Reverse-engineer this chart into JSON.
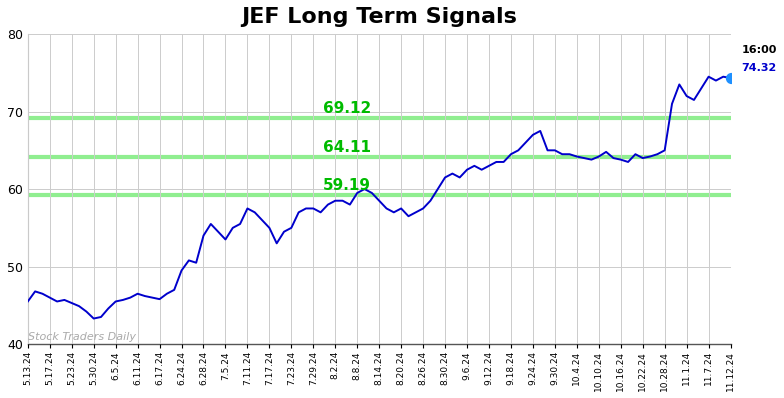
{
  "title": "JEF Long Term Signals",
  "title_fontsize": 16,
  "title_fontweight": "bold",
  "xlim_labels": [
    "5.13.24",
    "5.17.24",
    "5.23.24",
    "5.30.24",
    "6.5.24",
    "6.11.24",
    "6.17.24",
    "6.24.24",
    "6.28.24",
    "7.5.24",
    "7.11.24",
    "7.17.24",
    "7.23.24",
    "7.29.24",
    "8.2.24",
    "8.8.24",
    "8.14.24",
    "8.20.24",
    "8.26.24",
    "8.30.24",
    "9.6.24",
    "9.12.24",
    "9.18.24",
    "9.24.24",
    "9.30.24",
    "10.4.24",
    "10.10.24",
    "10.16.24",
    "10.22.24",
    "10.28.24",
    "11.1.24",
    "11.7.24",
    "11.12.24"
  ],
  "ylim": [
    40,
    80
  ],
  "yticks": [
    40,
    50,
    60,
    70,
    80
  ],
  "hlines": [
    59.19,
    64.11,
    69.12
  ],
  "hline_color": "#90EE90",
  "hline_labels": [
    "59.19",
    "64.11",
    "69.12"
  ],
  "hline_label_color": "#00BB00",
  "watermark": "Stock Traders Daily",
  "watermark_color": "#AAAAAA",
  "last_label_time": "16:00",
  "last_label_price": "74.32",
  "last_price": 74.32,
  "line_color": "#0000CC",
  "dot_color": "#1E90FF",
  "bg_color": "#FFFFFF",
  "grid_color": "#CCCCCC",
  "prices": [
    45.5,
    46.8,
    46.5,
    46.0,
    45.5,
    45.7,
    45.3,
    44.9,
    44.2,
    43.3,
    43.5,
    44.6,
    45.5,
    45.7,
    46.0,
    46.5,
    46.2,
    46.0,
    45.8,
    46.5,
    47.0,
    49.5,
    50.8,
    50.5,
    54.0,
    55.5,
    54.5,
    53.5,
    55.0,
    55.5,
    57.5,
    57.0,
    56.0,
    55.0,
    53.0,
    54.5,
    55.0,
    57.0,
    57.5,
    57.5,
    57.0,
    58.0,
    58.5,
    58.5,
    58.0,
    59.5,
    60.0,
    59.5,
    58.5,
    57.5,
    57.0,
    57.5,
    56.5,
    57.0,
    57.5,
    58.5,
    60.0,
    61.5,
    62.0,
    61.5,
    62.5,
    63.0,
    62.5,
    63.0,
    63.5,
    63.5,
    64.5,
    65.0,
    66.0,
    67.0,
    67.5,
    65.0,
    65.0,
    64.5,
    64.5,
    64.2,
    64.0,
    63.8,
    64.2,
    64.8,
    64.0,
    63.8,
    63.5,
    64.5,
    64.0,
    64.2,
    64.5,
    65.0,
    71.0,
    73.5,
    72.0,
    71.5,
    73.0,
    74.5,
    74.0,
    74.5,
    74.32
  ]
}
